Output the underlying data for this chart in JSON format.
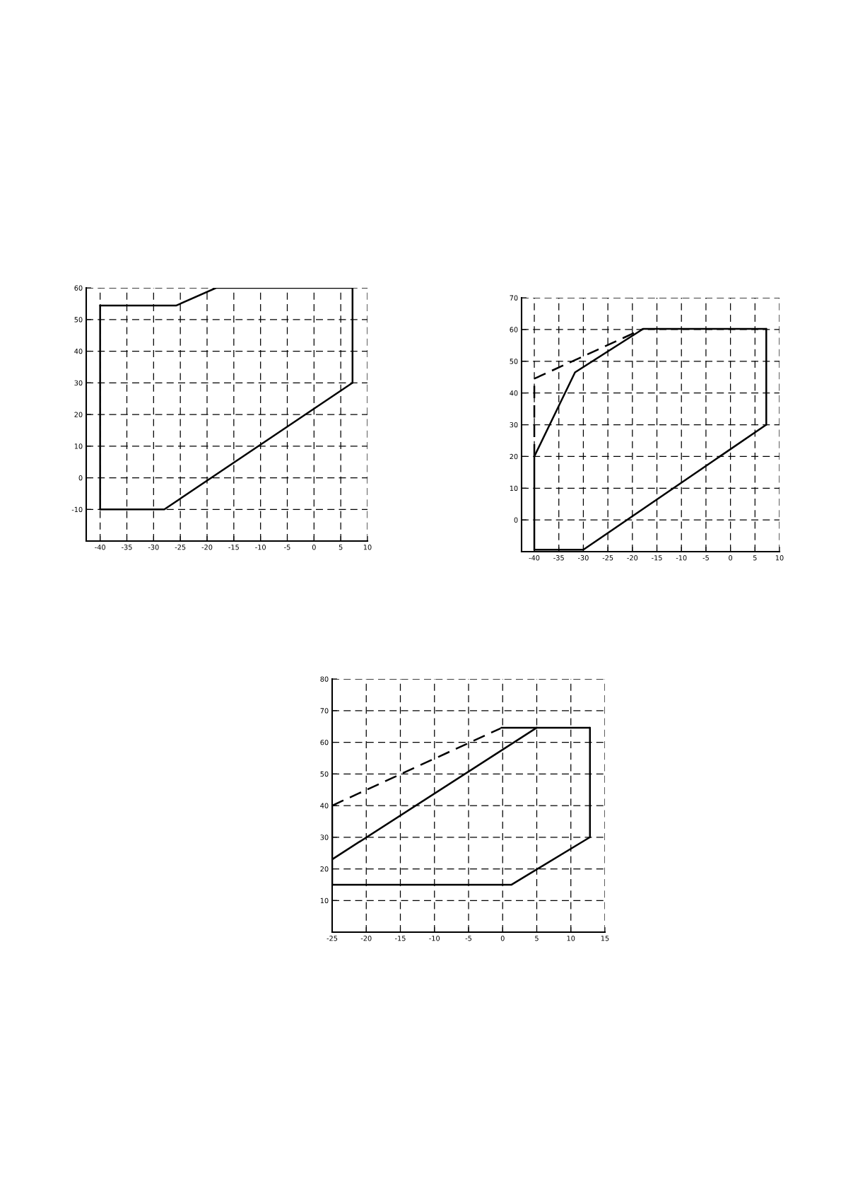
{
  "chart_data": [
    {
      "type": "line",
      "xlim": [
        -42.6,
        10
      ],
      "ylim": [
        -20,
        60
      ],
      "xticks": [
        -40,
        -35,
        -30,
        -25,
        -20,
        -15,
        -10,
        -5,
        0,
        5,
        10
      ],
      "yticks": [
        -10,
        0,
        10,
        20,
        30,
        40,
        50,
        60
      ],
      "grid": true,
      "marker": "none",
      "series": [
        {
          "color": "#000000",
          "line_style": "solid",
          "x": [
            -40,
            -28,
            7.2
          ],
          "values": [
            -10,
            -10,
            30
          ]
        },
        {
          "color": "#000000",
          "line_style": "solid",
          "x": [
            -40,
            -25.8,
            -18.3,
            7.2
          ],
          "values": [
            54.4,
            54.4,
            60,
            60
          ]
        },
        {
          "color": "#000000",
          "line_style": "solid",
          "x": [
            -40,
            -40
          ],
          "values": [
            -10,
            54.4
          ]
        },
        {
          "color": "#000000",
          "line_style": "solid",
          "x": [
            7.2,
            7.2
          ],
          "values": [
            30,
            60
          ]
        }
      ]
    },
    {
      "type": "line",
      "xlim": [
        -42.6,
        10
      ],
      "ylim": [
        -10,
        70
      ],
      "xticks": [
        -40,
        -35,
        -30,
        -25,
        -20,
        -15,
        -10,
        -5,
        0,
        5,
        10
      ],
      "yticks": [
        {
          "value": -10,
          "label": null
        },
        0,
        10,
        20,
        30,
        40,
        50,
        60,
        70
      ],
      "grid": true,
      "marker": "none",
      "series": [
        {
          "color": "#000000",
          "line_style": "solid",
          "x": [
            -40,
            -30,
            7.3
          ],
          "values": [
            -9.4,
            -9.4,
            30
          ]
        },
        {
          "color": "#000000",
          "line_style": "solid",
          "x": [
            -40,
            -31.7,
            -17.8,
            7.3
          ],
          "values": [
            20,
            46.5,
            60.2,
            60.2
          ]
        },
        {
          "color": "#000000",
          "line_style": "solid",
          "x": [
            7.3,
            7.3
          ],
          "values": [
            30,
            60.2
          ]
        },
        {
          "color": "#000000",
          "line_style": "solid",
          "x": [
            -40,
            -40
          ],
          "values": [
            -9.4,
            20
          ]
        },
        {
          "color": "#000000",
          "line_style": "dashed",
          "x": [
            -40,
            -40
          ],
          "values": [
            20,
            44.5
          ]
        },
        {
          "color": "#000000",
          "line_style": "dashed",
          "x": [
            -40,
            -17.8
          ],
          "values": [
            44.5,
            60.2
          ]
        }
      ]
    },
    {
      "type": "line",
      "xlim": [
        -25,
        15
      ],
      "ylim": [
        0,
        80
      ],
      "xticks": [
        -25,
        -20,
        -15,
        -10,
        -5,
        0,
        5,
        10,
        15
      ],
      "yticks": [
        10,
        20,
        30,
        40,
        50,
        60,
        70,
        80
      ],
      "grid": true,
      "marker": "none",
      "series": [
        {
          "color": "#000000",
          "line_style": "solid",
          "x": [
            -25,
            1.3,
            12.8
          ],
          "values": [
            15,
            15,
            30
          ]
        },
        {
          "color": "#000000",
          "line_style": "solid",
          "x": [
            -0.2,
            12.8
          ],
          "values": [
            64.6,
            64.6
          ]
        },
        {
          "color": "#000000",
          "line_style": "solid",
          "x": [
            12.8,
            12.8
          ],
          "values": [
            30,
            64.6
          ]
        },
        {
          "color": "#000000",
          "line_style": "solid",
          "x": [
            -25,
            -25
          ],
          "values": [
            15,
            40
          ]
        },
        {
          "color": "#000000",
          "line_style": "solid",
          "x": [
            -25,
            5
          ],
          "values": [
            23,
            64.6
          ]
        },
        {
          "color": "#000000",
          "line_style": "dashed",
          "x": [
            -25,
            -0.3
          ],
          "values": [
            40,
            64.4
          ]
        }
      ]
    }
  ]
}
